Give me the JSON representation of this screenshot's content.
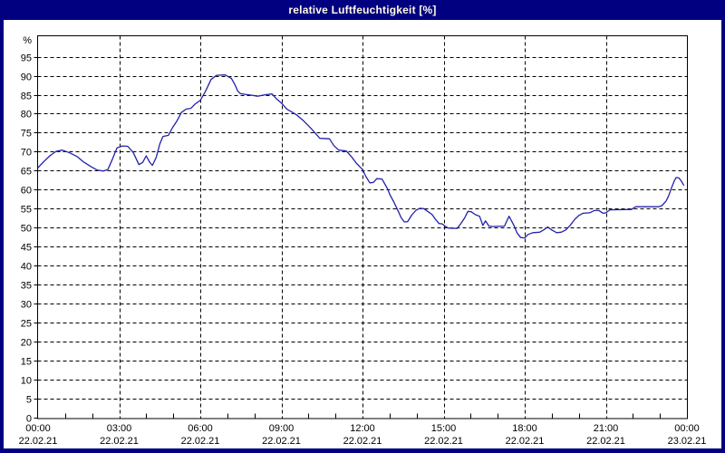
{
  "window": {
    "title": "relative Luftfeuchtigkeit [%]"
  },
  "colors": {
    "title_bar": "#000080",
    "title_text": "#fffbe8",
    "window_border": "#000080",
    "plot_background": "#ffffff",
    "grid": "#000000",
    "series": "#2222aa"
  },
  "chart_data": {
    "type": "line",
    "title": "relative Luftfeuchtigkeit [%]",
    "legend": "none",
    "x_axis": {
      "range_hours": [
        0,
        24
      ],
      "major_tick_every_hours": 3,
      "minor_tick_every_hours": 1,
      "grid": "dashed",
      "ticks": [
        {
          "hour": 0,
          "time": "00:00",
          "date": "22.02.21"
        },
        {
          "hour": 3,
          "time": "03:00",
          "date": "22.02.21"
        },
        {
          "hour": 6,
          "time": "06:00",
          "date": "22.02.21"
        },
        {
          "hour": 9,
          "time": "09:00",
          "date": "22.02.21"
        },
        {
          "hour": 12,
          "time": "12:00",
          "date": "22.02.21"
        },
        {
          "hour": 15,
          "time": "15:00",
          "date": "22.02.21"
        },
        {
          "hour": 18,
          "time": "18:00",
          "date": "22.02.21"
        },
        {
          "hour": 21,
          "time": "21:00",
          "date": "22.02.21"
        },
        {
          "hour": 24,
          "time": "00:00",
          "date": "23.02.21"
        }
      ]
    },
    "y_axis": {
      "unit_label": "%",
      "min": 0,
      "max": 100,
      "tick_step": 5,
      "tick_labels": [
        "0",
        "5",
        "10",
        "15",
        "20",
        "25",
        "30",
        "35",
        "40",
        "45",
        "50",
        "55",
        "60",
        "65",
        "70",
        "75",
        "80",
        "85",
        "90",
        "95"
      ],
      "grid": "dashed"
    },
    "series": [
      {
        "name": "relative Luftfeuchtigkeit",
        "unit": "%",
        "color": "#2222aa",
        "points_hour_value": [
          [
            0.0,
            65.8
          ],
          [
            0.2,
            67.3
          ],
          [
            0.45,
            69.0
          ],
          [
            0.67,
            70.1
          ],
          [
            0.9,
            70.4
          ],
          [
            1.17,
            69.7
          ],
          [
            1.45,
            68.7
          ],
          [
            1.68,
            67.3
          ],
          [
            1.95,
            66.1
          ],
          [
            2.18,
            65.2
          ],
          [
            2.42,
            64.9
          ],
          [
            2.58,
            65.3
          ],
          [
            2.75,
            68.0
          ],
          [
            2.92,
            71.0
          ],
          [
            3.12,
            71.5
          ],
          [
            3.32,
            71.4
          ],
          [
            3.52,
            69.8
          ],
          [
            3.73,
            66.6
          ],
          [
            3.87,
            67.2
          ],
          [
            4.0,
            68.9
          ],
          [
            4.13,
            67.2
          ],
          [
            4.23,
            66.4
          ],
          [
            4.37,
            68.5
          ],
          [
            4.5,
            72.0
          ],
          [
            4.62,
            74.0
          ],
          [
            4.82,
            74.3
          ],
          [
            4.97,
            76.3
          ],
          [
            5.13,
            78.0
          ],
          [
            5.3,
            80.3
          ],
          [
            5.48,
            81.2
          ],
          [
            5.65,
            81.4
          ],
          [
            5.82,
            82.6
          ],
          [
            6.0,
            83.5
          ],
          [
            6.2,
            86.0
          ],
          [
            6.4,
            89.0
          ],
          [
            6.6,
            90.1
          ],
          [
            6.92,
            90.2
          ],
          [
            7.15,
            89.3
          ],
          [
            7.27,
            87.8
          ],
          [
            7.38,
            86.0
          ],
          [
            7.48,
            85.3
          ],
          [
            7.65,
            85.1
          ],
          [
            7.85,
            84.9
          ],
          [
            8.12,
            84.6
          ],
          [
            8.42,
            85.0
          ],
          [
            8.65,
            85.2
          ],
          [
            8.82,
            83.9
          ],
          [
            9.0,
            82.8
          ],
          [
            9.2,
            81.2
          ],
          [
            9.4,
            80.4
          ],
          [
            9.58,
            79.6
          ],
          [
            9.82,
            78.1
          ],
          [
            10.1,
            76.1
          ],
          [
            10.42,
            73.5
          ],
          [
            10.78,
            73.4
          ],
          [
            10.93,
            71.7
          ],
          [
            11.12,
            70.4
          ],
          [
            11.4,
            70.2
          ],
          [
            11.6,
            68.6
          ],
          [
            11.77,
            67.0
          ],
          [
            12.0,
            65.3
          ],
          [
            12.13,
            63.4
          ],
          [
            12.27,
            61.8
          ],
          [
            12.4,
            61.9
          ],
          [
            12.53,
            62.9
          ],
          [
            12.72,
            62.8
          ],
          [
            12.93,
            60.2
          ],
          [
            13.02,
            58.6
          ],
          [
            13.17,
            56.6
          ],
          [
            13.33,
            54.2
          ],
          [
            13.43,
            52.6
          ],
          [
            13.55,
            51.5
          ],
          [
            13.67,
            51.6
          ],
          [
            13.83,
            53.4
          ],
          [
            13.98,
            54.6
          ],
          [
            14.12,
            55.1
          ],
          [
            14.27,
            55.0
          ],
          [
            14.43,
            54.2
          ],
          [
            14.58,
            53.4
          ],
          [
            14.7,
            52.2
          ],
          [
            14.83,
            51.1
          ],
          [
            14.95,
            51.0
          ],
          [
            15.05,
            50.4
          ],
          [
            15.17,
            49.9
          ],
          [
            15.5,
            49.8
          ],
          [
            15.63,
            51.0
          ],
          [
            15.78,
            52.6
          ],
          [
            15.9,
            54.3
          ],
          [
            16.02,
            54.2
          ],
          [
            16.18,
            53.4
          ],
          [
            16.33,
            53.0
          ],
          [
            16.45,
            50.6
          ],
          [
            16.55,
            51.8
          ],
          [
            16.68,
            50.4
          ],
          [
            16.8,
            50.3
          ],
          [
            17.25,
            50.4
          ],
          [
            17.42,
            53.0
          ],
          [
            17.6,
            50.6
          ],
          [
            17.72,
            48.6
          ],
          [
            17.85,
            47.4
          ],
          [
            18.0,
            47.3
          ],
          [
            18.12,
            48.2
          ],
          [
            18.3,
            48.7
          ],
          [
            18.55,
            48.8
          ],
          [
            18.7,
            49.4
          ],
          [
            18.85,
            50.2
          ],
          [
            19.0,
            49.4
          ],
          [
            19.18,
            48.7
          ],
          [
            19.35,
            48.8
          ],
          [
            19.52,
            49.4
          ],
          [
            19.68,
            50.6
          ],
          [
            19.85,
            52.2
          ],
          [
            20.0,
            53.2
          ],
          [
            20.15,
            53.8
          ],
          [
            20.4,
            53.9
          ],
          [
            20.57,
            54.5
          ],
          [
            20.75,
            54.5
          ],
          [
            20.9,
            53.8
          ],
          [
            21.0,
            53.9
          ],
          [
            21.15,
            54.7
          ],
          [
            21.95,
            54.8
          ],
          [
            22.1,
            55.5
          ],
          [
            22.95,
            55.5
          ],
          [
            23.07,
            55.8
          ],
          [
            23.23,
            57.0
          ],
          [
            23.33,
            58.5
          ],
          [
            23.43,
            60.5
          ],
          [
            23.53,
            62.3
          ],
          [
            23.6,
            63.2
          ],
          [
            23.7,
            63.1
          ],
          [
            23.8,
            62.2
          ],
          [
            23.88,
            61.2
          ]
        ]
      }
    ]
  }
}
